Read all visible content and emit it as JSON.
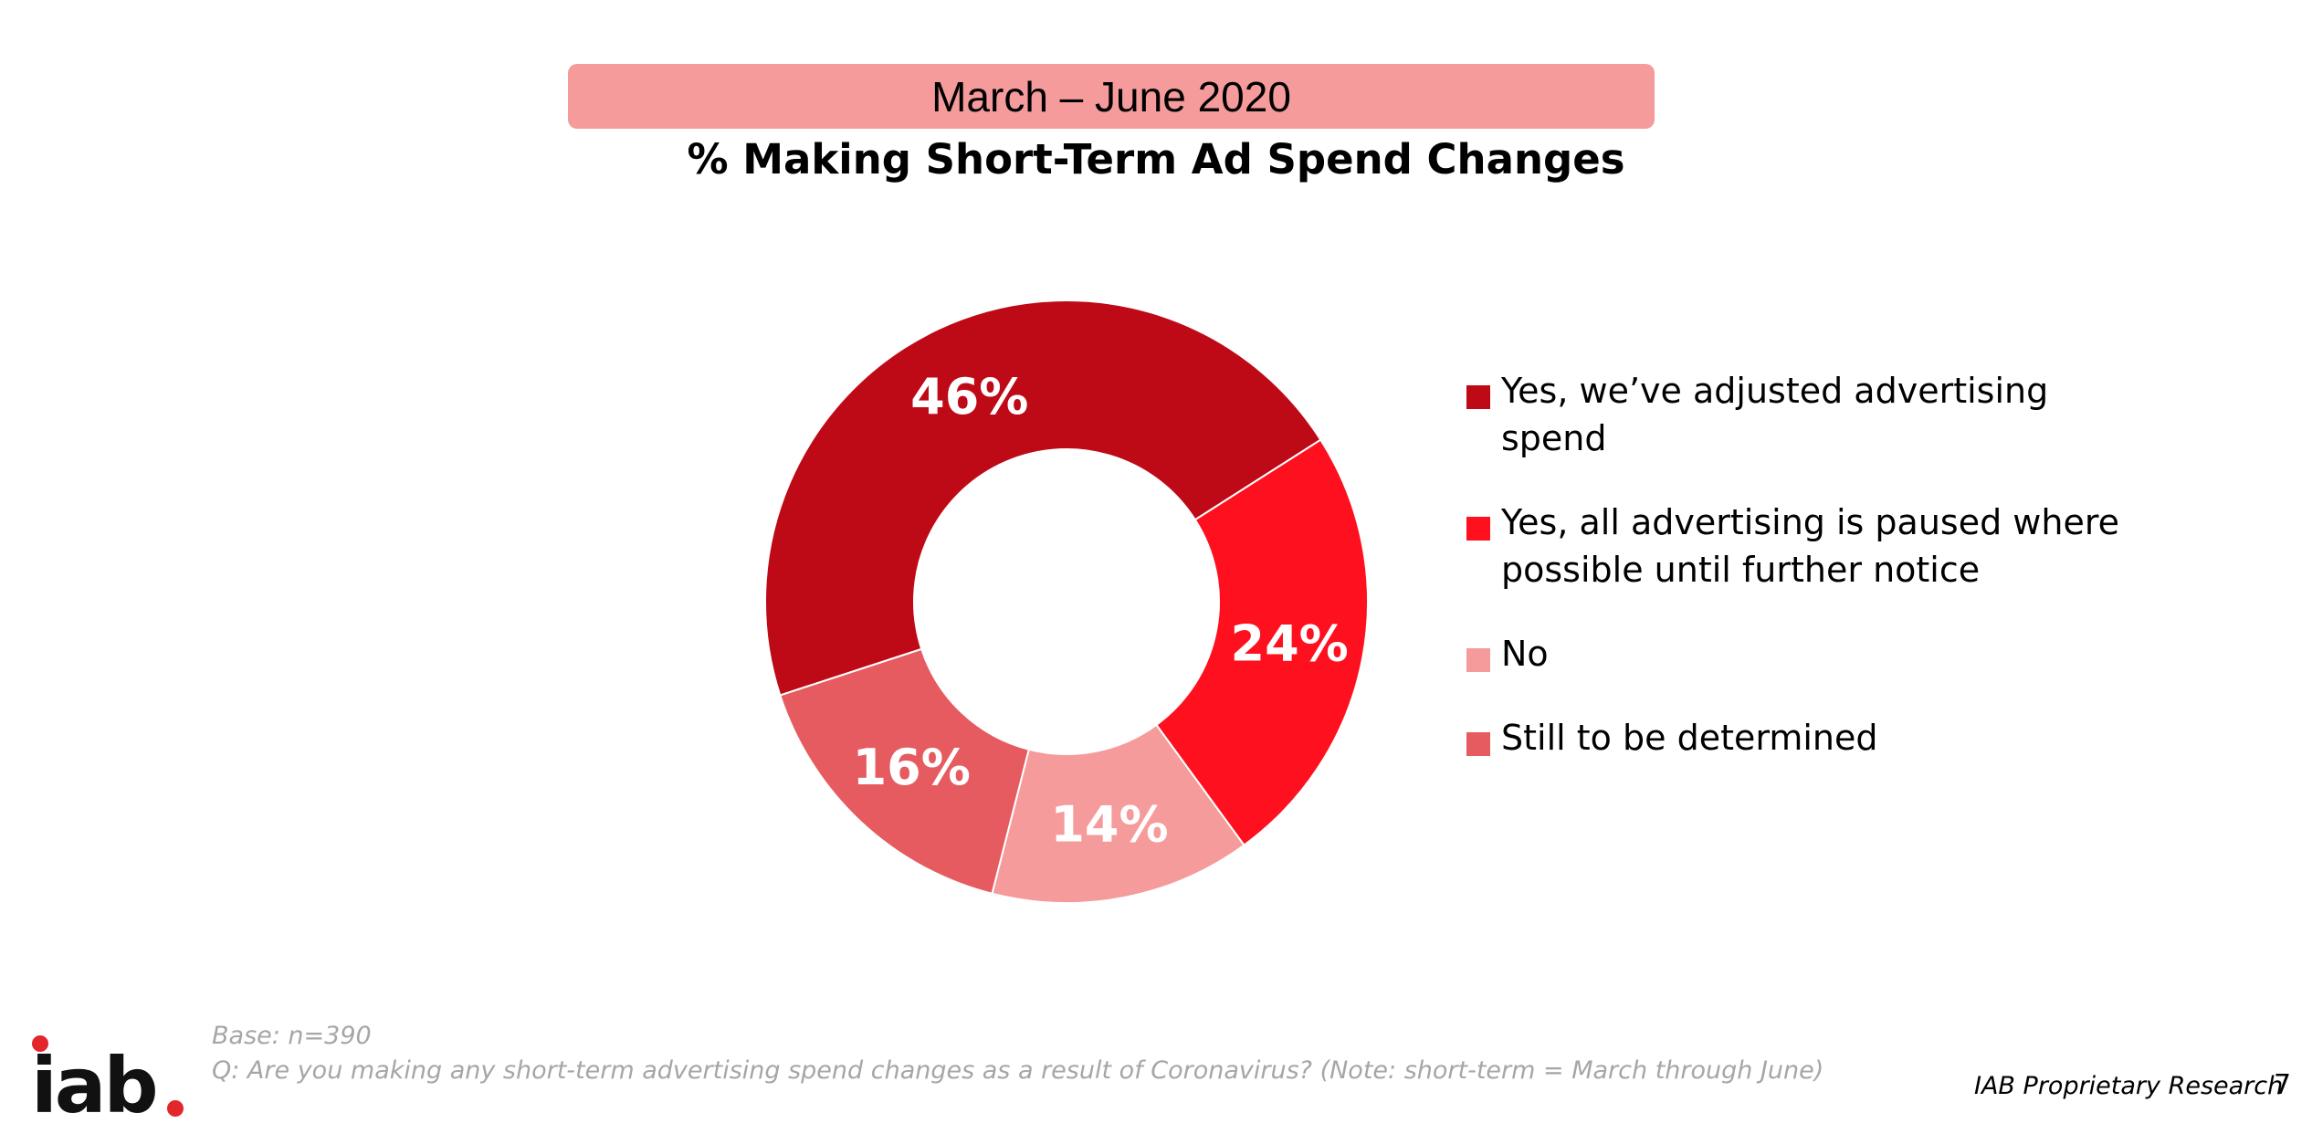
{
  "header": {
    "period": "March – June 2020",
    "title": "% Making Short-Term Ad Spend Changes"
  },
  "chart_data": {
    "type": "pie",
    "donut": true,
    "slices": [
      {
        "label": "Yes, we’ve adjusted advertising spend",
        "value": 46,
        "display": "46%",
        "color": "#be0a17"
      },
      {
        "label": "Yes, all advertising is paused where possible until further notice",
        "value": 24,
        "display": "24%",
        "color": "#fe101f"
      },
      {
        "label": "No",
        "value": 14,
        "display": "14%",
        "color": "#f59b9b"
      },
      {
        "label": "Still to be determined",
        "value": 16,
        "display": "16%",
        "color": "#e65b60"
      }
    ],
    "legend_position": "right"
  },
  "footer": {
    "base": "Base: n=390",
    "question": "Q: Are you making any short-term advertising spend changes as a result of Coronavirus? (Note: short-term = March through June)",
    "proprietary": "IAB Proprietary Research",
    "page_number": "7"
  },
  "logo": {
    "text": "iab",
    "dot_color": "#e3262b",
    "icon": "iab-logo-icon"
  }
}
